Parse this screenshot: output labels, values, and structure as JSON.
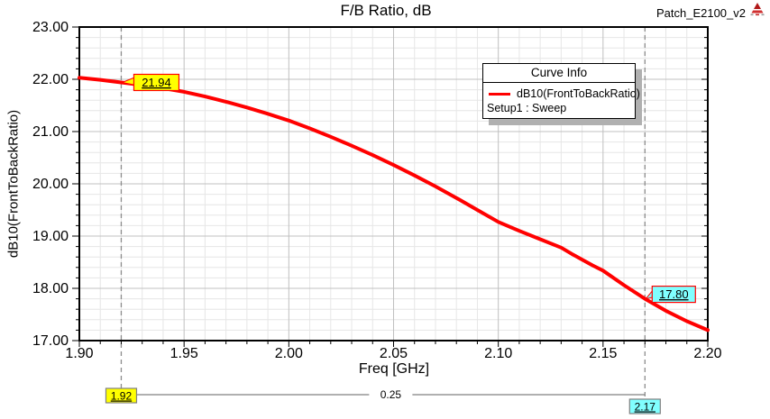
{
  "header": {
    "title": "F/B Ratio, dB",
    "model_name": "Patch_E2100_v2"
  },
  "legend": {
    "title": "Curve Info",
    "series_label": "dB10(FrontToBackRatio)",
    "setup_label": "Setup1 : Sweep"
  },
  "axes": {
    "x": {
      "label": "Freq [GHz]",
      "tick_labels": [
        "1.90",
        "1.95",
        "2.00",
        "2.05",
        "2.10",
        "2.15",
        "2.20"
      ],
      "minor_step": 0.01
    },
    "y": {
      "label": "dB10(FrontToBackRatio)",
      "tick_labels": [
        "17.00",
        "18.00",
        "19.00",
        "20.00",
        "21.00",
        "22.00",
        "23.00"
      ],
      "minor_step": 0.2
    }
  },
  "colors": {
    "curve": "#ff0000",
    "minor_grid": "#e6e6e6",
    "major_grid": "#c0c0c0",
    "marker_line": "#8c8c8c",
    "marker1_fill": "#ffff00",
    "marker2_fill": "#80ffff",
    "marker_border": "#ff0000",
    "box_border": "#808080",
    "legend_shadow": "#b0b0b0"
  },
  "chart_data": {
    "type": "line",
    "title": "F/B Ratio, dB",
    "xlabel": "Freq [GHz]",
    "ylabel": "dB10(FrontToBackRatio)",
    "xlim": [
      1.9,
      2.2
    ],
    "ylim": [
      17.0,
      23.0
    ],
    "x_major_step": 0.05,
    "x_minor_step": 0.01,
    "y_major_step": 1.0,
    "y_minor_step": 0.2,
    "grid": "major+minor",
    "legend_position": "top-right-inside",
    "series": [
      {
        "name": "dB10(FrontToBackRatio)",
        "setup": "Setup1 : Sweep",
        "color": "#ff0000",
        "x": [
          1.9,
          1.91,
          1.92,
          1.93,
          1.94,
          1.95,
          1.96,
          1.97,
          1.98,
          1.99,
          2.0,
          2.01,
          2.02,
          2.03,
          2.04,
          2.05,
          2.06,
          2.07,
          2.08,
          2.09,
          2.1,
          2.11,
          2.12,
          2.13,
          2.135,
          2.14,
          2.145,
          2.15,
          2.16,
          2.17,
          2.18,
          2.19,
          2.2
        ],
        "y": [
          22.03,
          21.99,
          21.94,
          21.89,
          21.83,
          21.76,
          21.67,
          21.57,
          21.46,
          21.34,
          21.21,
          21.06,
          20.9,
          20.73,
          20.55,
          20.36,
          20.16,
          19.95,
          19.73,
          19.5,
          19.27,
          19.1,
          18.94,
          18.78,
          18.66,
          18.55,
          18.44,
          18.34,
          18.06,
          17.8,
          17.57,
          17.37,
          17.2
        ]
      }
    ],
    "point_markers": [
      {
        "name": "m1",
        "x": 1.92,
        "y": 21.94,
        "label": "21.94",
        "fill": "#ffff00"
      },
      {
        "name": "m2",
        "x": 2.17,
        "y": 17.8,
        "label": "17.80",
        "fill": "#80ffff"
      }
    ],
    "x_axis_markers": [
      {
        "name": "m1",
        "x": 1.92,
        "label": "1.92",
        "fill": "#ffff00"
      },
      {
        "name": "m2",
        "x": 2.17,
        "label": "2.17",
        "fill": "#80ffff"
      }
    ],
    "delta_annotation": {
      "label": "0.25",
      "from": 1.92,
      "to": 2.17
    }
  }
}
